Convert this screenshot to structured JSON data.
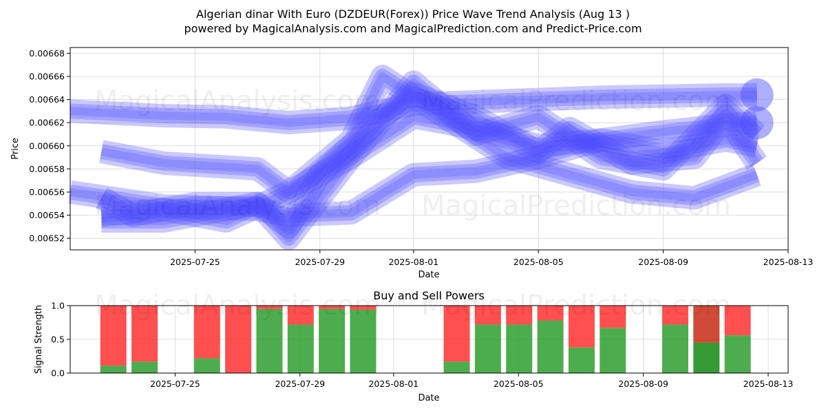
{
  "header": {
    "title": "Algerian dinar With Euro (DZDEUR(Forex)) Price Wave Trend Analysis (Aug 13 )",
    "subtitle": "powered by MagicalAnalysis.com and MagicalPrediction.com and Predict-Price.com"
  },
  "watermarks": [
    "MagicalAnalysis.com",
    "MagicalPrediction.com"
  ],
  "colors": {
    "wave": "#4b4bff",
    "buy": "#2e9e2e",
    "sell": "#ff3030",
    "buy_dark": "#138a13",
    "sell_dark": "#c82c14"
  },
  "chart_data": [
    {
      "type": "line",
      "title": "",
      "xlabel": "Date",
      "ylabel": "Price",
      "xlim": [
        "2025-07-21",
        "2025-08-13"
      ],
      "ylim": [
        0.00651,
        0.006685
      ],
      "x_ticks": [
        "2025-07-25",
        "2025-07-29",
        "2025-08-01",
        "2025-08-05",
        "2025-08-09",
        "2025-08-13"
      ],
      "y_ticks": [
        "0.00652",
        "0.00654",
        "0.00656",
        "0.00658",
        "0.00660",
        "0.00662",
        "0.00664",
        "0.00666",
        "0.00668"
      ],
      "grid": true,
      "series": [
        {
          "x": [
            "2025-07-21",
            "2025-07-24",
            "2025-07-26",
            "2025-07-28",
            "2025-07-30",
            "2025-08-01",
            "2025-08-03",
            "2025-08-05",
            "2025-08-07",
            "2025-08-09",
            "2025-08-11",
            "2025-08-12"
          ],
          "values": [
            0.00663,
            0.006626,
            0.006625,
            0.00662,
            0.006624,
            0.006636,
            0.006638,
            0.00664,
            0.006642,
            0.006643,
            0.006644,
            0.006644
          ]
        },
        {
          "x": [
            "2025-07-21",
            "2025-07-24",
            "2025-07-27",
            "2025-07-28",
            "2025-07-30",
            "2025-08-01",
            "2025-08-03",
            "2025-08-05",
            "2025-08-07",
            "2025-08-09",
            "2025-08-11",
            "2025-08-12"
          ],
          "values": [
            0.00656,
            0.006548,
            0.006545,
            0.00654,
            0.006542,
            0.006575,
            0.006578,
            0.00659,
            0.006605,
            0.006612,
            0.006618,
            0.00662
          ]
        },
        {
          "x": [
            "2025-07-22",
            "2025-07-24",
            "2025-07-27",
            "2025-07-28",
            "2025-07-30",
            "2025-08-01",
            "2025-08-03",
            "2025-08-05",
            "2025-08-07",
            "2025-08-09",
            "2025-08-11",
            "2025-08-12"
          ],
          "values": [
            0.006595,
            0.006585,
            0.00658,
            0.00656,
            0.00659,
            0.006625,
            0.006615,
            0.0066,
            0.006605,
            0.006595,
            0.006605,
            0.0066
          ]
        },
        {
          "x": [
            "2025-07-22",
            "2025-07-23",
            "2025-07-25",
            "2025-07-27",
            "2025-07-28",
            "2025-07-29",
            "2025-07-31",
            "2025-08-01",
            "2025-08-03",
            "2025-08-05",
            "2025-08-06",
            "2025-08-08",
            "2025-08-10",
            "2025-08-11",
            "2025-08-12"
          ],
          "values": [
            0.006555,
            0.00654,
            0.00655,
            0.00655,
            0.00653,
            0.006575,
            0.006625,
            0.006645,
            0.006625,
            0.006595,
            0.006615,
            0.006585,
            0.00659,
            0.006625,
            0.006585
          ]
        },
        {
          "x": [
            "2025-07-22",
            "2025-07-24",
            "2025-07-26",
            "2025-07-28",
            "2025-07-30",
            "2025-07-31",
            "2025-08-02",
            "2025-08-04",
            "2025-08-06",
            "2025-08-08",
            "2025-08-10",
            "2025-08-12"
          ],
          "values": [
            0.00654,
            0.006545,
            0.006535,
            0.00656,
            0.006605,
            0.00666,
            0.006625,
            0.00659,
            0.006575,
            0.00656,
            0.006555,
            0.006575
          ]
        },
        {
          "x": [
            "2025-07-22",
            "2025-07-24",
            "2025-07-26",
            "2025-07-27",
            "2025-07-28",
            "2025-07-30",
            "2025-08-01",
            "2025-08-03",
            "2025-08-05",
            "2025-08-07",
            "2025-08-09",
            "2025-08-11",
            "2025-08-12"
          ],
          "values": [
            0.006535,
            0.006535,
            0.006545,
            0.00655,
            0.00652,
            0.00659,
            0.006655,
            0.00661,
            0.006625,
            0.00659,
            0.00658,
            0.006635,
            0.00661
          ]
        }
      ]
    },
    {
      "type": "bar",
      "title": "Buy and Sell Powers",
      "xlabel": "Date",
      "ylabel": "Signal Strength",
      "xlim": [
        "2025-07-21",
        "2025-08-13"
      ],
      "ylim": [
        0,
        1
      ],
      "x_ticks": [
        "2025-07-25",
        "2025-07-29",
        "2025-08-01",
        "2025-08-05",
        "2025-08-09",
        "2025-08-13"
      ],
      "y_ticks": [
        "0.0",
        "0.5",
        "1.0"
      ],
      "grid": true,
      "x": [
        "2025-07-23",
        "2025-07-24",
        "2025-07-26",
        "2025-07-27",
        "2025-07-28",
        "2025-07-29",
        "2025-07-30",
        "2025-07-31",
        "2025-08-03",
        "2025-08-04",
        "2025-08-05",
        "2025-08-06",
        "2025-08-07",
        "2025-08-08",
        "2025-08-10",
        "2025-08-11",
        "2025-08-12"
      ],
      "buy": [
        0.11,
        0.17,
        0.22,
        0.0,
        0.95,
        0.72,
        0.95,
        0.94,
        0.17,
        0.72,
        0.72,
        0.78,
        0.38,
        0.67,
        0.72,
        0.45,
        0.56
      ],
      "sell": [
        0.89,
        0.83,
        0.78,
        1.0,
        0.05,
        0.28,
        0.05,
        0.06,
        0.83,
        0.28,
        0.28,
        0.22,
        0.62,
        0.33,
        0.28,
        0.55,
        0.44
      ],
      "highlight_x": "2025-08-11"
    }
  ]
}
